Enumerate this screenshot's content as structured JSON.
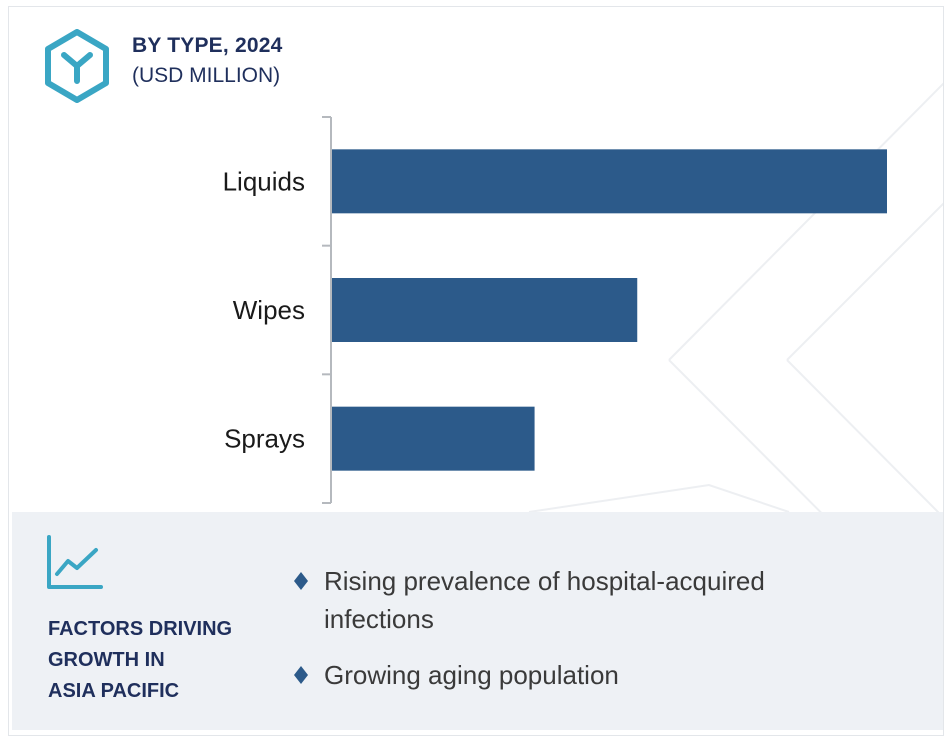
{
  "header": {
    "title": "BY TYPE, 2024",
    "subtitle": "(USD MILLION)",
    "logo_icon": "hexagon-y-logo-icon",
    "accent_color": "#3aa6c4"
  },
  "chart_data": {
    "type": "bar",
    "orientation": "horizontal",
    "categories": [
      "Liquids",
      "Wipes",
      "Sprays"
    ],
    "values": [
      100,
      55,
      36.5
    ],
    "title": "BY TYPE, 2024",
    "subtitle": "(USD MILLION)",
    "xlabel": "",
    "ylabel": "",
    "xlim": [
      0,
      100
    ],
    "bar_color": "#2c5a8a",
    "grid": false,
    "x_axis_visible": false
  },
  "factors": {
    "icon": "trend-chart-icon",
    "heading_lines": [
      "FACTORS DRIVING",
      "GROWTH IN",
      "ASIA PACIFIC"
    ],
    "bullet_color": "#2c5a8a",
    "items": [
      {
        "line1": "Rising prevalence of hospital-acquired",
        "line2": "infections"
      },
      {
        "line1": "Growing aging population",
        "line2": ""
      }
    ]
  }
}
